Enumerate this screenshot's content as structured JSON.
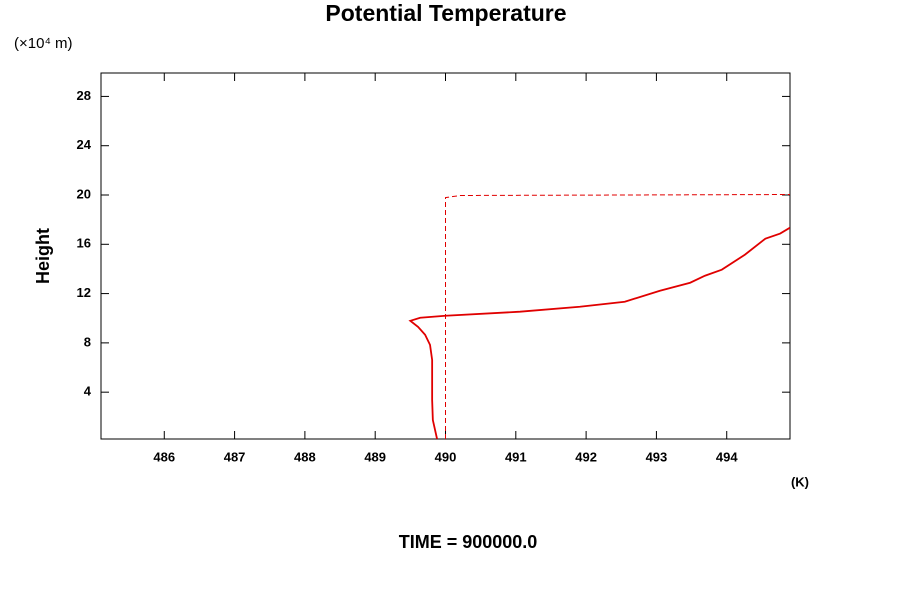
{
  "chart_data": {
    "type": "line",
    "title": "Potential Temperature",
    "y_unit_label": "(×10⁴ m)",
    "ylabel": "Height",
    "xlabel": "(K)",
    "footer": "TIME = 900000.0",
    "xlim": [
      485.1,
      494.9
    ],
    "xticks": [
      486,
      487,
      488,
      489,
      490,
      491,
      492,
      493,
      494
    ],
    "ylim": [
      0.2,
      29.9
    ],
    "yticks": [
      4,
      8,
      12,
      16,
      20,
      24,
      28
    ],
    "series": [
      {
        "color": "#e00000",
        "style": "solid",
        "x": [
          489.88,
          489.82,
          489.81,
          489.81,
          489.78,
          489.71,
          489.61,
          489.5,
          489.64,
          490.0,
          491.06,
          491.91,
          492.55,
          493.05,
          493.48,
          493.69,
          493.93,
          494.26,
          494.55,
          494.76,
          494.9
        ],
        "values": [
          0.2,
          1.74,
          3.37,
          6.62,
          7.84,
          8.66,
          9.3,
          9.79,
          10.04,
          10.2,
          10.53,
          10.93,
          11.34,
          12.23,
          12.88,
          13.45,
          13.94,
          15.16,
          16.46,
          16.87,
          17.35
        ]
      },
      {
        "color": "#e00000",
        "style": "dashed",
        "x": [
          490.0,
          490.0,
          490.21,
          494.9
        ],
        "values": [
          0.2,
          19.79,
          19.96,
          20.04
        ]
      }
    ]
  }
}
